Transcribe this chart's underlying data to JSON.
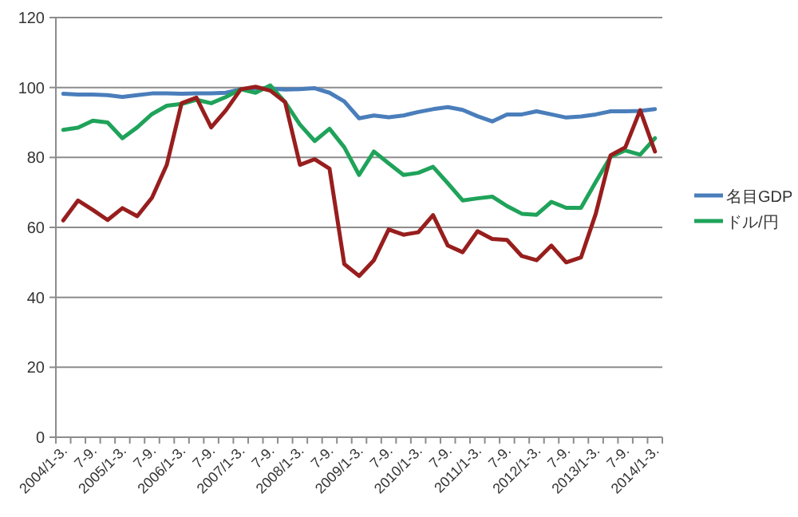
{
  "chart_data": {
    "type": "line",
    "categories": [
      "2004/1-3.",
      null,
      "7-9.",
      null,
      "2005/1-3.",
      null,
      "7-9.",
      null,
      "2006/1-3.",
      null,
      "7-9.",
      null,
      "2007/1-3.",
      null,
      "7-9.",
      null,
      "2008/1-3.",
      null,
      "7-9.",
      null,
      "2009/1-3.",
      null,
      "7-9.",
      null,
      "2010/1-3.",
      null,
      "7-9.",
      null,
      "2011/1-3.",
      null,
      "7-9.",
      null,
      "2012/1-3.",
      null,
      "7-9.",
      null,
      "2013/1-3.",
      null,
      "7-9.",
      null,
      "2014/1-3."
    ],
    "series": [
      {
        "name": "名目GDP",
        "color": "#4a7ebb",
        "values": [
          98.2,
          98,
          98,
          97.8,
          97.3,
          97.8,
          98.3,
          98.3,
          98.2,
          98.3,
          98.3,
          98.5,
          99.5,
          99.7,
          99.7,
          99.4,
          99.5,
          99.8,
          98.5,
          96,
          91.2,
          92,
          91.5,
          92,
          93,
          93.8,
          94.4,
          93.6,
          91.8,
          90.3,
          92.3,
          92.3,
          93.2,
          92.3,
          91.4,
          91.7,
          92.3,
          93.2,
          93.2,
          93.3,
          93.8
        ]
      },
      {
        "name": "ドル/円",
        "color": "#1fa35a",
        "values": [
          87.9,
          88.5,
          90.5,
          90,
          85.5,
          88.6,
          92.4,
          94.8,
          95.3,
          96.5,
          95.5,
          97.3,
          99.5,
          98.5,
          100.6,
          95.8,
          89.4,
          84.7,
          88.2,
          82.9,
          75,
          81.7,
          78.3,
          75,
          75.6,
          77.3,
          72.6,
          67.7,
          68.3,
          68.8,
          66.1,
          63.9,
          63.6,
          67.3,
          65.6,
          65.6,
          73,
          80.2,
          82,
          80.8,
          85.5
        ]
      },
      {
        "color": "#981e1e",
        "values": [
          62,
          67.7,
          65,
          62.1,
          65.5,
          63.2,
          68.5,
          77.9,
          95.5,
          97.1,
          88.6,
          93.5,
          99.5,
          100.2,
          99.1,
          95.8,
          77.9,
          79.5,
          76.8,
          49.5,
          46.1,
          50.6,
          59.4,
          57.9,
          58.6,
          63.5,
          54.8,
          52.9,
          58.9,
          56.7,
          56.4,
          51.8,
          50.6,
          54.8,
          50,
          51.4,
          63.9,
          80.6,
          82.9,
          93.5,
          81.7
        ]
      }
    ],
    "ylim": [
      0,
      120
    ],
    "yticks": [
      0,
      20,
      40,
      60,
      80,
      100,
      120
    ],
    "grid": "y",
    "legend": "right"
  }
}
